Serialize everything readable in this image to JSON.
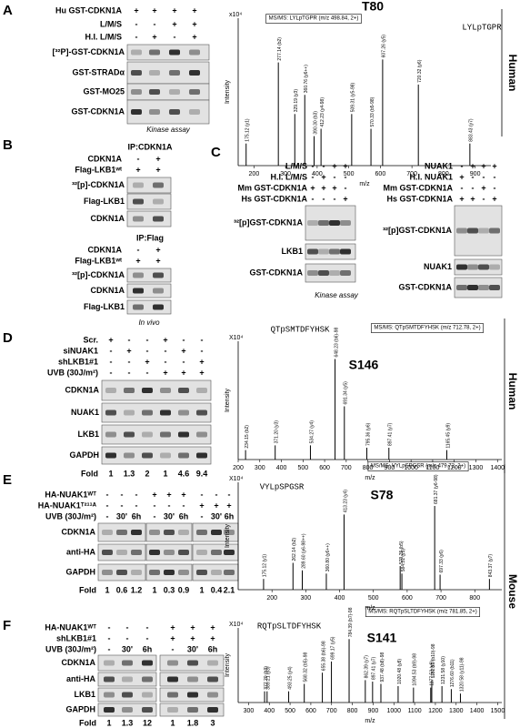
{
  "panels": {
    "A": {
      "letter": "A",
      "groups": [
        {
          "conditions": [
            {
              "label": "Hu GST-CDKN1A",
              "lanes": [
                "+",
                "+",
                "+",
                "+"
              ]
            },
            {
              "label": "L/M/S",
              "lanes": [
                "-",
                "-",
                "+",
                "+"
              ]
            },
            {
              "label": "H.I. L/M/S",
              "lanes": [
                "-",
                "+",
                "-",
                "+"
              ]
            }
          ],
          "blots": [
            "[³²P]-GST-CDKN1A",
            "GST-STRADα",
            "GST-MO25",
            "GST-CDKN1A"
          ],
          "note": "Kinase assay"
        }
      ]
    },
    "B": {
      "letter": "B",
      "groups": [
        {
          "header": "IP:CDKN1A",
          "conditions": [
            {
              "label": "CDKN1A",
              "lanes": [
                "-",
                "+"
              ]
            },
            {
              "label": "Flag-LKB1ʷᵗ",
              "lanes": [
                "+",
                "+"
              ]
            }
          ],
          "blots": [
            "³²[p]-CDKN1A",
            "Flag-LKB1",
            "CDKN1A"
          ]
        },
        {
          "header": "IP:Flag",
          "conditions": [
            {
              "label": "CDKN1A",
              "lanes": [
                "-",
                "+"
              ]
            },
            {
              "label": "Flag-LKB1ʷᵗ",
              "lanes": [
                "+",
                "+"
              ]
            }
          ],
          "blots": [
            "³²[p]-CDKN1A",
            "CDKN1A",
            "Flag-LKB1"
          ],
          "note": "In vivo"
        }
      ]
    },
    "C": {
      "letter": "C",
      "groups": [
        {
          "conditions": [
            {
              "label": "L/M/S",
              "lanes": [
                "-",
                "-",
                "+",
                "+"
              ]
            },
            {
              "label": "H.I. L/M/S",
              "lanes": [
                "-",
                "+",
                "-",
                "-"
              ]
            },
            {
              "label": "Mm GST-CDKN1A",
              "lanes": [
                "+",
                "+",
                "+",
                "-"
              ]
            },
            {
              "label": "Hs GST-CDKN1A",
              "lanes": [
                "-",
                "-",
                "-",
                "+"
              ]
            }
          ],
          "blots": [
            "³²[p]GST-CDKN1A",
            "LKB1",
            "GST-CDKN1A"
          ],
          "note": "Kinase assay"
        },
        {
          "conditions": [
            {
              "label": "NUAK1",
              "lanes": [
                "-",
                "+",
                "+",
                "+"
              ]
            },
            {
              "label": "H.I. NUAK1",
              "lanes": [
                "+",
                "-",
                "-",
                "-"
              ]
            },
            {
              "label": "Mm GST-CDKN1A",
              "lanes": [
                "-",
                "-",
                "+",
                "-"
              ]
            },
            {
              "label": "Hs GST-CDKN1A",
              "lanes": [
                "+",
                "+",
                "-",
                "+"
              ]
            }
          ],
          "blots": [
            "³²[p]GST-CDKN1A",
            "NUAK1",
            "GST-CDKN1A"
          ]
        }
      ]
    },
    "D": {
      "letter": "D",
      "groups": [
        {
          "conditions": [
            {
              "label": "Scr.",
              "lanes": [
                "+",
                "-",
                "-",
                "+",
                "-",
                "-"
              ]
            },
            {
              "label": "siNUAK1",
              "lanes": [
                "-",
                "+",
                "-",
                "-",
                "+",
                "-"
              ]
            },
            {
              "label": "shLKB1#1",
              "lanes": [
                "-",
                "-",
                "+",
                "-",
                "-",
                "+"
              ]
            },
            {
              "label": "UVB (30J/m²)",
              "lanes": [
                "-",
                "-",
                "-",
                "+",
                "+",
                "+"
              ]
            }
          ],
          "blots": [
            "CDKN1A",
            "NUAK1",
            "LKB1",
            "GAPDH"
          ],
          "fold": {
            "label": "Fold",
            "values": [
              1,
              1.3,
              2,
              1,
              4.6,
              9.4
            ]
          }
        }
      ]
    },
    "E": {
      "letter": "E",
      "groups": [
        {
          "conditions": [
            {
              "label": "HA-NUAK1ᵂᵀ",
              "lanes": [
                "-",
                "-",
                "-",
                "+",
                "+",
                "+",
                "-",
                "-",
                "-"
              ]
            },
            {
              "label": "HA-NUAK1ᵀ²¹¹ᴬ",
              "lanes": [
                "-",
                "-",
                "-",
                "-",
                "-",
                "-",
                "+",
                "+",
                "+"
              ]
            },
            {
              "label": "UVB (30J/m²)",
              "lanes": [
                "-",
                "30'",
                "6h",
                "-",
                "30'",
                "6h",
                "-",
                "30'",
                "6h"
              ]
            }
          ],
          "blots": [
            "CDKN1A",
            "anti-HA",
            "GAPDH"
          ],
          "fold": {
            "label": "Fold",
            "values": [
              1,
              0.6,
              1.2,
              1,
              0.3,
              0.9,
              1,
              0.4,
              2.1
            ]
          }
        }
      ]
    },
    "F": {
      "letter": "F",
      "groups": [
        {
          "conditions": [
            {
              "label": "HA-NUAK1ᵂᵀ",
              "lanes": [
                "-",
                "-",
                "-",
                "+",
                "+",
                "+"
              ]
            },
            {
              "label": "shLKB1#1",
              "lanes": [
                "-",
                "-",
                "-",
                "+",
                "+",
                "+"
              ]
            },
            {
              "label": "UVB (30J/m²)",
              "lanes": [
                "-",
                "30'",
                "6h",
                "-",
                "30'",
                "6h"
              ]
            }
          ],
          "blots": [
            "CDKN1A",
            "anti-HA",
            "LKB1",
            "GAPDH"
          ],
          "fold": {
            "label": "Fold",
            "values": [
              1,
              1.3,
              12,
              1,
              1.8,
              3
            ]
          }
        }
      ]
    }
  },
  "spectra": [
    {
      "title": "T80",
      "msms": "MS/MS: LYLpTGPR (m/z 498.84, 2+)",
      "sequence": "LYLpTGPR",
      "exponent": "x10⁴",
      "ylabel": "Intensity",
      "xlabel": "m/z",
      "side": "Human",
      "xlim": [
        150,
        950
      ],
      "xticks": [
        200,
        300,
        400,
        500,
        600,
        700,
        800,
        900
      ],
      "ylim": [
        0,
        100
      ],
      "peaks": [
        {
          "mz": 175.12,
          "intensity": 15,
          "label": "175.12 (y1)"
        },
        {
          "mz": 277.14,
          "intensity": 70,
          "label": "277.14 (b2)"
        },
        {
          "mz": 329.19,
          "intensity": 35,
          "label": "329.19 (y3)"
        },
        {
          "mz": 360.76,
          "intensity": 48,
          "label": "360.76 (y6++)"
        },
        {
          "mz": 390.3,
          "intensity": 20,
          "label": "390.30 (b3)"
        },
        {
          "mz": 412.23,
          "intensity": 25,
          "label": "412.23 (y4-98)"
        },
        {
          "mz": 509.31,
          "intensity": 35,
          "label": "509.31 (y5-98)"
        },
        {
          "mz": 570.33,
          "intensity": 25,
          "label": "570.33 (b5-98)"
        },
        {
          "mz": 607.26,
          "intensity": 72,
          "label": "607.26 (y5)"
        },
        {
          "mz": 720.32,
          "intensity": 55,
          "label": "720.32 (y6)"
        },
        {
          "mz": 883.43,
          "intensity": 15,
          "label": "883.43 (y7)"
        }
      ]
    },
    {
      "title": "S146",
      "msms": "MS/MS: QTpSMTDFYHSK (m/z 712.78, 2+)",
      "sequence": "QTpSMTDFYHSK",
      "exponent": "X10⁴",
      "ylabel": "Intensity",
      "xlabel": "m/z",
      "side": "Human",
      "xlim": [
        200,
        1420
      ],
      "xticks": [
        200,
        300,
        400,
        500,
        600,
        700,
        800,
        900,
        1000,
        1100,
        1200,
        1300,
        1400
      ],
      "ylim": [
        0,
        100
      ],
      "peaks": [
        {
          "mz": 234.15,
          "intensity": 8,
          "label": "234.15 (b2)"
        },
        {
          "mz": 371.2,
          "intensity": 12,
          "label": "371.20 (y3)"
        },
        {
          "mz": 534.27,
          "intensity": 12,
          "label": "534.27 (y4)"
        },
        {
          "mz": 648.23,
          "intensity": 85,
          "label": "648.23 (b6)-98"
        },
        {
          "mz": 691.34,
          "intensity": 45,
          "label": "691.34 (y5)"
        },
        {
          "mz": 795.36,
          "intensity": 10,
          "label": "795.36 (y6)"
        },
        {
          "mz": 897.41,
          "intensity": 10,
          "label": "897.41 (y7)"
        },
        {
          "mz": 1165.45,
          "intensity": 8,
          "label": "1165.45 (y9)"
        }
      ]
    },
    {
      "title": "S78",
      "msms": "MS/MS: VYLpSPGSR (m/z 479.72, 2+)",
      "sequence": "VYLpSPGSR",
      "exponent": "X10⁴",
      "ylabel": "Intensity",
      "xlabel": "m/z",
      "side": "Mouse",
      "xlim": [
        100,
        880
      ],
      "xticks": [
        200,
        300,
        400,
        500,
        600,
        700,
        800
      ],
      "ylim": [
        0,
        100
      ],
      "peaks": [
        {
          "mz": 175.12,
          "intensity": 10,
          "label": "175.12 (y1)"
        },
        {
          "mz": 262.14,
          "intensity": 25,
          "label": "262.14 (b2)"
        },
        {
          "mz": 289.6,
          "intensity": 18,
          "label": "289.60 (y6-98++)"
        },
        {
          "mz": 360.8,
          "intensity": 15,
          "label": "360.80 (y6++)"
        },
        {
          "mz": 413.23,
          "intensity": 70,
          "label": "413.23 (y4)"
        },
        {
          "mz": 579.25,
          "intensity": 22,
          "label": "579.25 (b5)"
        },
        {
          "mz": 584.31,
          "intensity": 15,
          "label": "584.31 (y5)"
        },
        {
          "mz": 681.37,
          "intensity": 78,
          "label": "681.37 (y6-98)"
        },
        {
          "mz": 697.33,
          "intensity": 14,
          "label": "697.33 (y6)"
        },
        {
          "mz": 843.37,
          "intensity": 10,
          "label": "843.37 (y7)"
        }
      ]
    },
    {
      "title": "S141",
      "msms": "MS/MS: RQTpSLTDFYHSK (m/z 781.85, 2+)",
      "sequence": "RQTpSLTDFYHSK",
      "exponent": "X10⁴",
      "ylabel": "Intensity",
      "xlabel": "m/z",
      "xlim": [
        250,
        1520
      ],
      "xticks": [
        300,
        400,
        500,
        600,
        700,
        800,
        900,
        1000,
        1100,
        1200,
        1300,
        1400,
        1500
      ],
      "ylim": [
        0,
        100
      ],
      "peaks": [
        {
          "mz": 377.2,
          "intensity": 15,
          "label": "377.20 (b3)"
        },
        {
          "mz": 389.21,
          "intensity": 15,
          "label": "389.21 (y3)"
        },
        {
          "mz": 493.25,
          "intensity": 15,
          "label": "493.25 (y4)"
        },
        {
          "mz": 568.32,
          "intensity": 25,
          "label": "568.32 (b5)-98"
        },
        {
          "mz": 655.38,
          "intensity": 40,
          "label": "655.38 (b6)-98"
        },
        {
          "mz": 699.17,
          "intensity": 55,
          "label": "699.17 (y5)"
        },
        {
          "mz": 784.39,
          "intensity": 85,
          "label": "784.39 (b7)-98"
        },
        {
          "mz": 862.39,
          "intensity": 30,
          "label": "862.39 (y7)"
        },
        {
          "mz": 897.41,
          "intensity": 28,
          "label": "897.41 (y7)"
        },
        {
          "mz": 937.48,
          "intensity": 25,
          "label": "937.48 (b8)-98"
        },
        {
          "mz": 1020.48,
          "intensity": 22,
          "label": "1020.48 (y8)"
        },
        {
          "mz": 1094.53,
          "intensity": 20,
          "label": "1094.53 (b9)-98"
        },
        {
          "mz": 1177.53,
          "intensity": 20,
          "label": "1177.53 (y9)"
        },
        {
          "mz": 1182.59,
          "intensity": 30,
          "label": "1182.59 (b10)-98"
        },
        {
          "mz": 1231.58,
          "intensity": 22,
          "label": "1231.58 (y10)"
        },
        {
          "mz": 1276.6,
          "intensity": 18,
          "label": "1276.60 (b11)"
        },
        {
          "mz": 1320.58,
          "intensity": 12,
          "label": "1320.58 (y11)-98"
        }
      ]
    }
  ]
}
